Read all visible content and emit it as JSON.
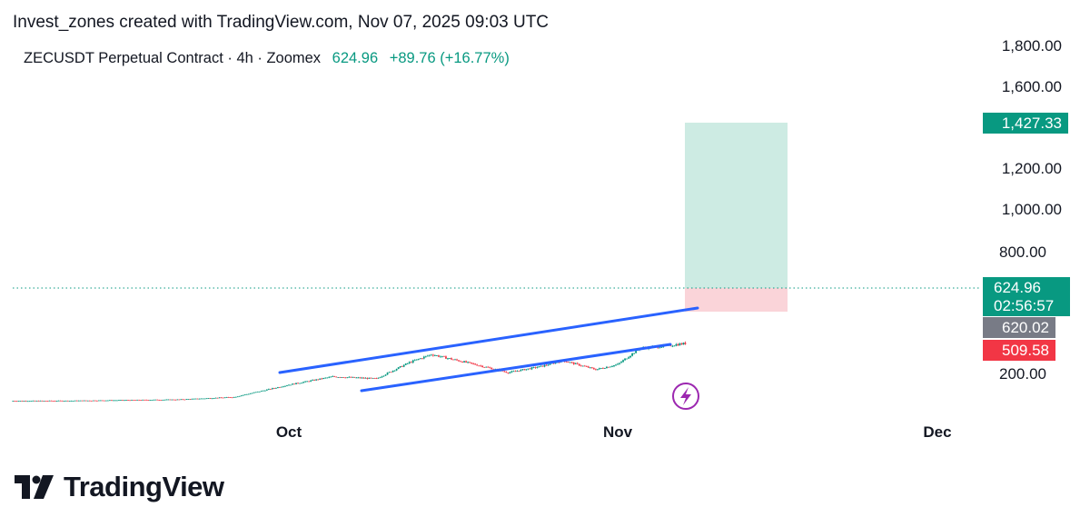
{
  "header": {
    "credit": "Invest_zones created with TradingView.com, Nov 07, 2025 09:03 UTC"
  },
  "legend": {
    "symbol": "ZECUSDT Perpetual Contract · 4h · Zoomex",
    "price": "624.96",
    "change": "+89.76 (+16.77%)"
  },
  "brand": {
    "name": "TradingView",
    "logo_icon": "tradingview-logo-icon"
  },
  "colors": {
    "up": "#089981",
    "down": "#F23645",
    "channel": "#2962FF",
    "target_zone": "#CDEBE3",
    "stop_zone": "#FAD4D9",
    "stop_label": "#F23645",
    "entry_label": "#787B86",
    "lightning": "#9C27B0"
  },
  "chart_data": {
    "type": "candlestick",
    "title": "ZECUSDT Perpetual Contract · 4h · Zoomex",
    "xlabel": "",
    "ylabel": "",
    "y_ticks": [
      "1,800.00",
      "1,600.00",
      "1,200.00",
      "1,000.00",
      "800.00",
      "200.00"
    ],
    "x_ticks": [
      "Oct",
      "Nov",
      "Dec"
    ],
    "price_labels": {
      "target": "1,427.33",
      "current_price": "624.96",
      "countdown": "02:56:57",
      "entry": "620.02",
      "stop": "509.58"
    },
    "levels": {
      "target": 1427.33,
      "entry": 620.02,
      "stop": 509.58,
      "current": 624.96
    },
    "approx_price_path": [
      {
        "date": "2025-08-27",
        "price": 60
      },
      {
        "date": "2025-09-10",
        "price": 62
      },
      {
        "date": "2025-09-20",
        "price": 68
      },
      {
        "date": "2025-09-25",
        "price": 80
      },
      {
        "date": "2025-09-30",
        "price": 140
      },
      {
        "date": "2025-10-04",
        "price": 180
      },
      {
        "date": "2025-10-08",
        "price": 170
      },
      {
        "date": "2025-10-11",
        "price": 250
      },
      {
        "date": "2025-10-13",
        "price": 290
      },
      {
        "date": "2025-10-17",
        "price": 240
      },
      {
        "date": "2025-10-20",
        "price": 200
      },
      {
        "date": "2025-10-23",
        "price": 230
      },
      {
        "date": "2025-10-25",
        "price": 260
      },
      {
        "date": "2025-10-28",
        "price": 215
      },
      {
        "date": "2025-10-30",
        "price": 240
      },
      {
        "date": "2025-11-01",
        "price": 320
      },
      {
        "date": "2025-11-03",
        "price": 330
      },
      {
        "date": "2025-11-06",
        "price": 350
      },
      {
        "date": "2025-11-08",
        "price": 410
      },
      {
        "date": "2025-11-09",
        "price": 470
      },
      {
        "date": "2025-11-10",
        "price": 540
      },
      {
        "date": "2025-11-11",
        "price": 625
      }
    ],
    "channel_lines": [
      {
        "name": "upper",
        "from": {
          "date": "2025-09-30",
          "price": 205
        },
        "to": {
          "date": "2025-11-12",
          "price": 515
        }
      },
      {
        "name": "lower",
        "from": {
          "date": "2025-10-08",
          "price": 140
        },
        "to": {
          "date": "2025-11-10",
          "price": 340
        }
      }
    ]
  }
}
